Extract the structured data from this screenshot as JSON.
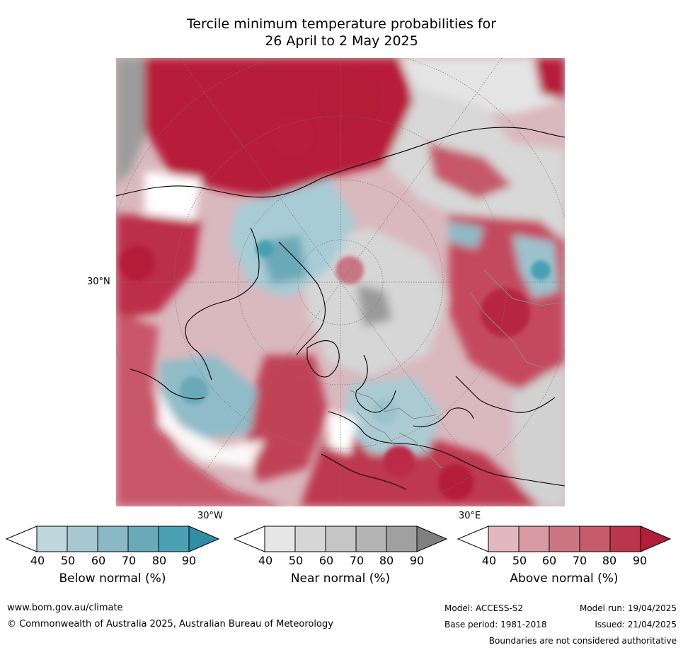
{
  "title": {
    "line1": "Tercile minimum temperature probabilities for",
    "line2": "26 April to 2 May 2025"
  },
  "map": {
    "lat_label": "30°N",
    "lon_left": "30°W",
    "lon_right": "30°E"
  },
  "colorbars": [
    {
      "label": "Below normal (%)",
      "ticks": [
        "40",
        "50",
        "60",
        "70",
        "80",
        "90"
      ],
      "colors": [
        "#ffffff",
        "#bed6dc",
        "#a7c8d0",
        "#8bb8c5",
        "#6aa9b8",
        "#4aa0b2",
        "#2f8ea6"
      ]
    },
    {
      "label": "Near normal (%)",
      "ticks": [
        "40",
        "50",
        "60",
        "70",
        "80",
        "90"
      ],
      "colors": [
        "#ffffff",
        "#e6e6e6",
        "#d6d6d6",
        "#c6c6c6",
        "#b4b4b4",
        "#a0a0a0",
        "#808080"
      ]
    },
    {
      "label": "Above normal (%)",
      "ticks": [
        "40",
        "50",
        "60",
        "70",
        "80",
        "90"
      ],
      "colors": [
        "#ffffff",
        "#e2b8bf",
        "#d79aa4",
        "#cc7683",
        "#c55b6b",
        "#b9364c",
        "#b01e3b"
      ]
    }
  ],
  "footer": {
    "website": "www.bom.gov.au/climate",
    "copyright": "© Commonwealth of Australia 2025, Australian Bureau of Meteorology",
    "model": "Model: ACCESS-S2",
    "model_run": "Model run: 19/04/2025",
    "base_period": "Base period: 1981-2018",
    "issued": "Issued: 21/04/2025",
    "disclaimer": "Boundaries are not considered authoritative"
  }
}
